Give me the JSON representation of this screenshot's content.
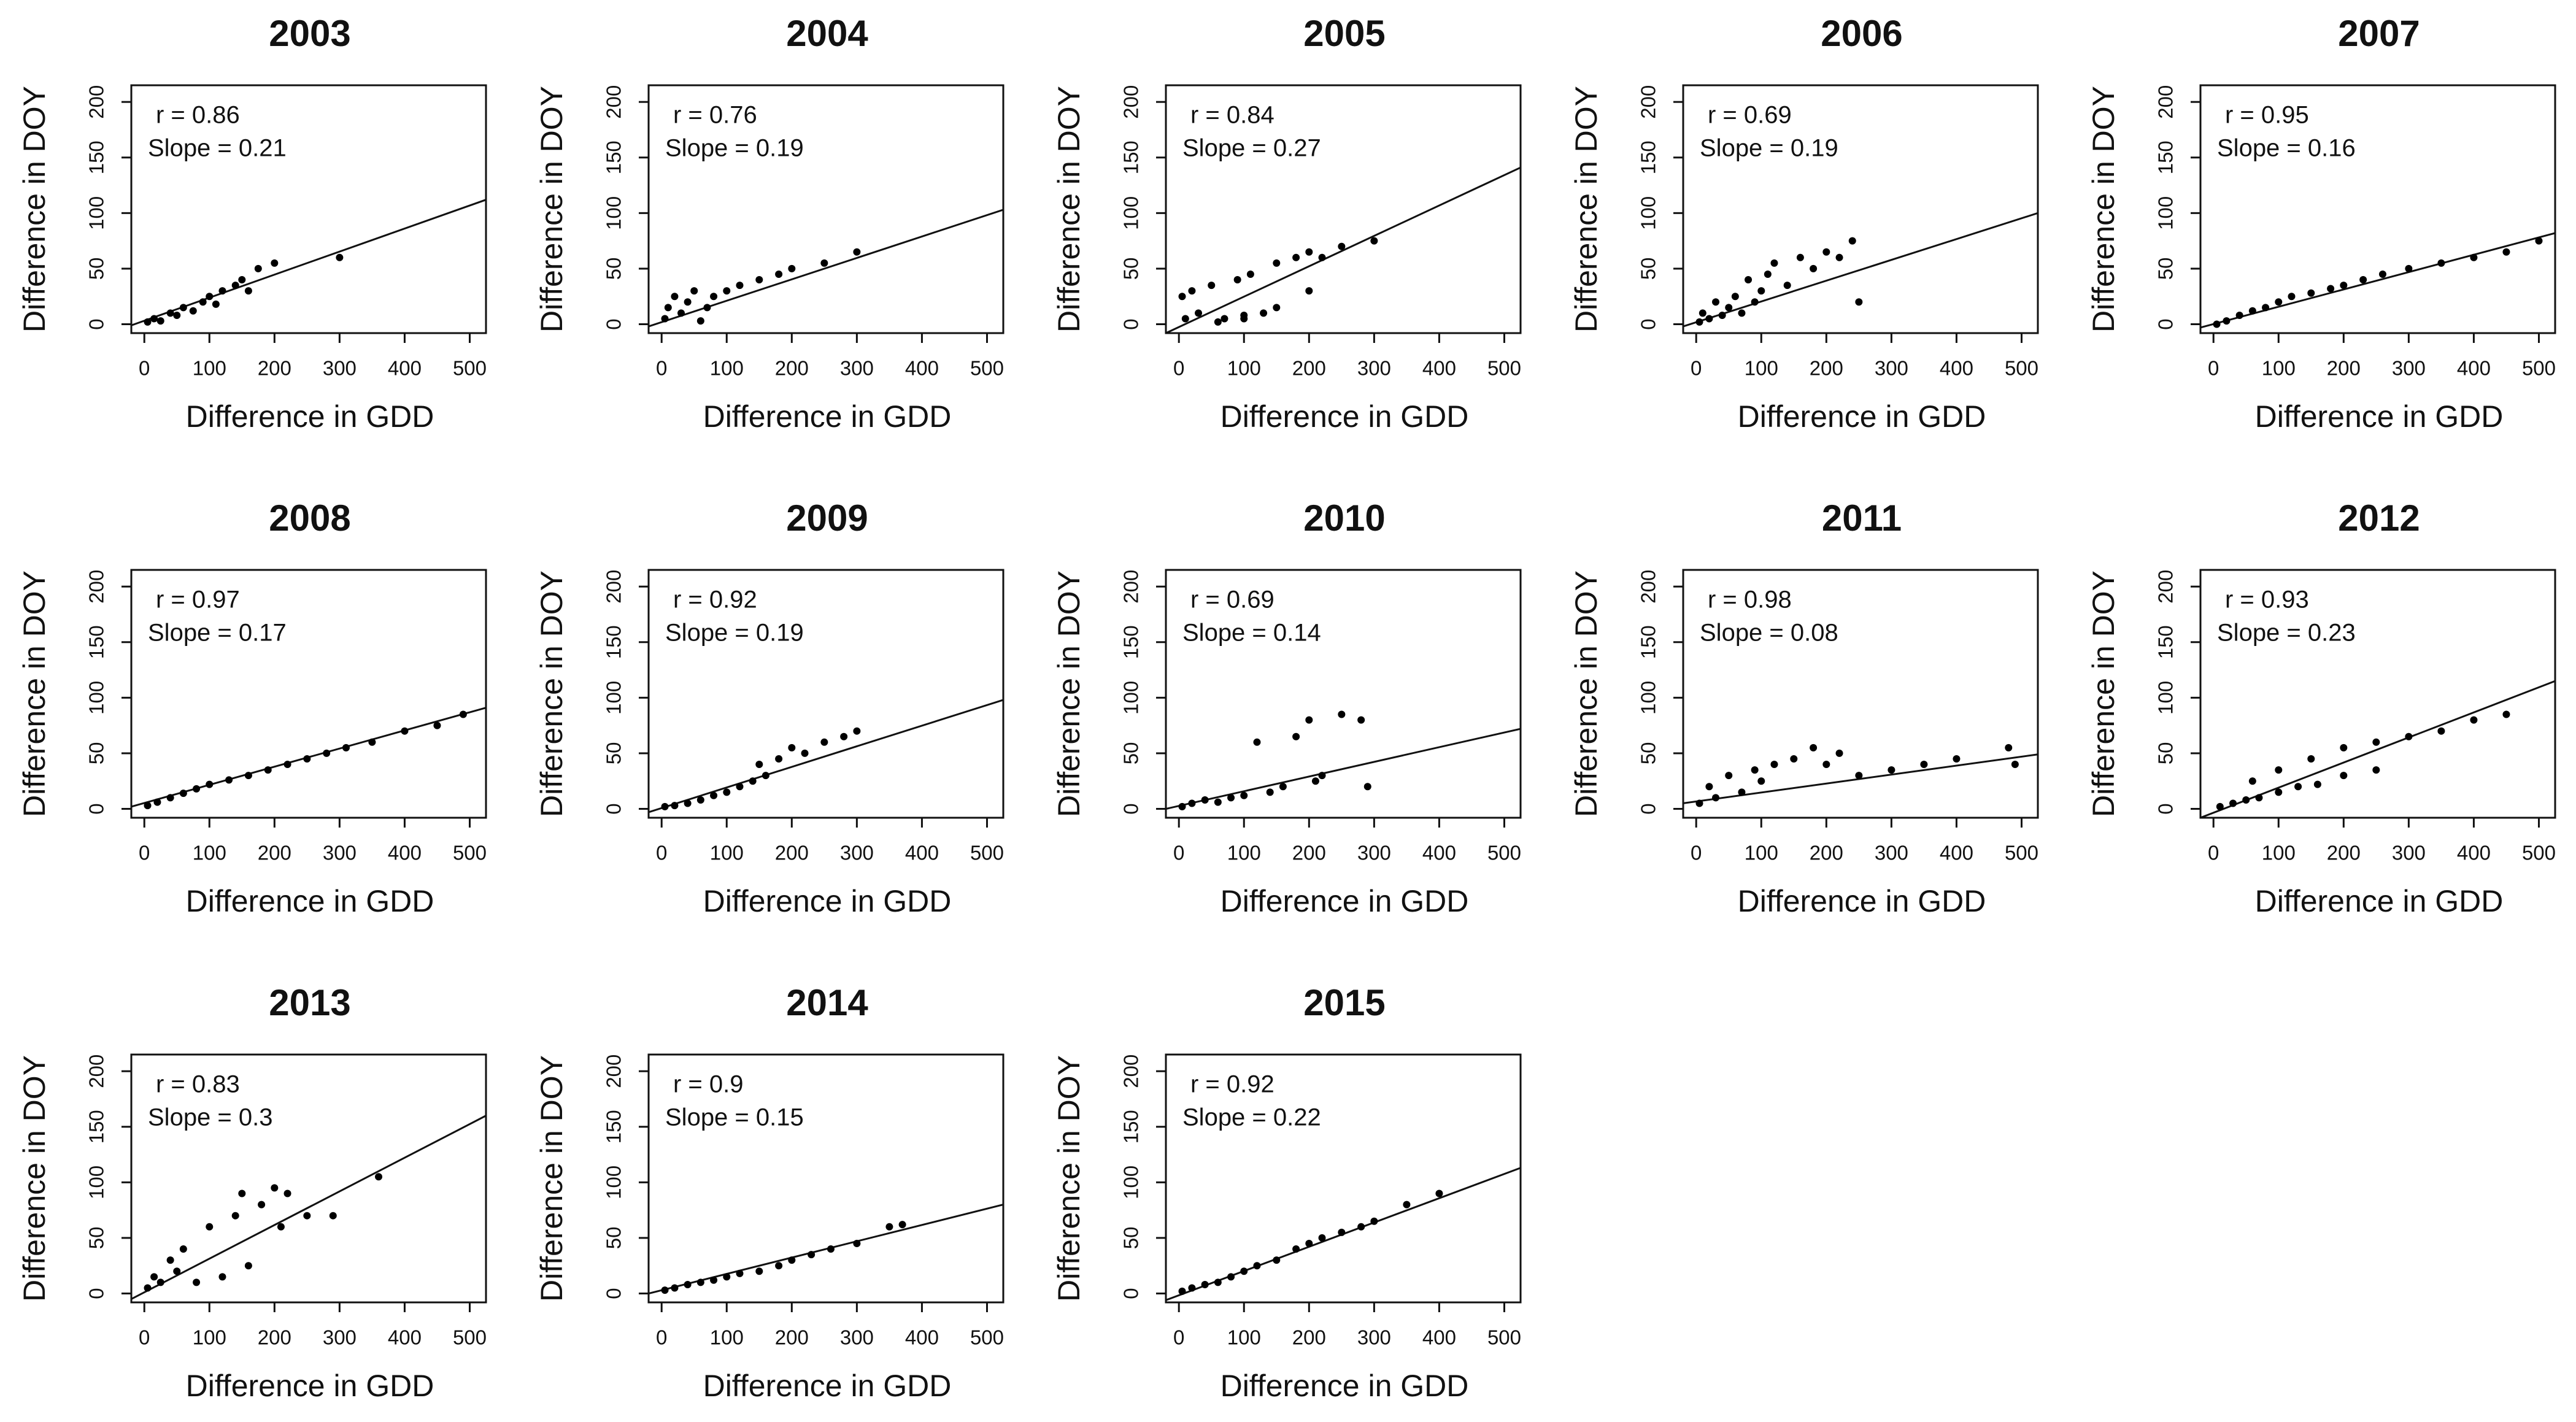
{
  "chart_data": [
    {
      "type": "scatter",
      "title": "2003",
      "xlabel": "Difference in GDD",
      "ylabel": "Difference in DOY",
      "annotations": [
        "r = 0.86",
        "Slope = 0.21"
      ],
      "x": [
        5,
        15,
        25,
        40,
        50,
        60,
        75,
        90,
        100,
        110,
        120,
        140,
        150,
        160,
        175,
        200,
        300
      ],
      "y": [
        2,
        5,
        3,
        10,
        8,
        15,
        12,
        20,
        25,
        18,
        30,
        35,
        40,
        30,
        50,
        55,
        60
      ],
      "fit": {
        "x": [
          -20,
          525
        ],
        "y": [
          -1,
          112
        ]
      },
      "xlim": [
        -20,
        525
      ],
      "ylim": [
        -8,
        215
      ],
      "xticks": [
        0,
        100,
        200,
        300,
        400,
        500
      ],
      "yticks": [
        0,
        50,
        100,
        150,
        200
      ],
      "color": "#000000"
    },
    {
      "type": "scatter",
      "title": "2004",
      "xlabel": "Difference in GDD",
      "ylabel": "Difference in DOY",
      "annotations": [
        "r = 0.76",
        "Slope = 0.19"
      ],
      "x": [
        5,
        10,
        20,
        30,
        40,
        50,
        60,
        70,
        80,
        100,
        120,
        150,
        180,
        200,
        250,
        300
      ],
      "y": [
        5,
        15,
        25,
        10,
        20,
        30,
        3,
        15,
        25,
        30,
        35,
        40,
        45,
        50,
        55,
        65
      ],
      "fit": {
        "x": [
          -20,
          525
        ],
        "y": [
          -2,
          103
        ]
      },
      "xlim": [
        -20,
        525
      ],
      "ylim": [
        -8,
        215
      ],
      "xticks": [
        0,
        100,
        200,
        300,
        400,
        500
      ],
      "yticks": [
        0,
        50,
        100,
        150,
        200
      ],
      "color": "#000000"
    },
    {
      "type": "scatter",
      "title": "2005",
      "xlabel": "Difference in GDD",
      "ylabel": "Difference in DOY",
      "annotations": [
        "r = 0.84",
        "Slope = 0.27"
      ],
      "x": [
        5,
        10,
        20,
        30,
        50,
        70,
        90,
        100,
        110,
        130,
        150,
        180,
        200,
        220,
        250,
        300,
        60,
        100,
        150,
        200
      ],
      "y": [
        25,
        5,
        30,
        10,
        35,
        5,
        40,
        8,
        45,
        10,
        55,
        60,
        65,
        60,
        70,
        75,
        2,
        5,
        15,
        30
      ],
      "fit": {
        "x": [
          -20,
          525
        ],
        "y": [
          -8,
          141
        ]
      },
      "xlim": [
        -20,
        525
      ],
      "ylim": [
        -8,
        215
      ],
      "xticks": [
        0,
        100,
        200,
        300,
        400,
        500
      ],
      "yticks": [
        0,
        50,
        100,
        150,
        200
      ],
      "color": "#000000"
    },
    {
      "type": "scatter",
      "title": "2006",
      "xlabel": "Difference in GDD",
      "ylabel": "Difference in DOY",
      "annotations": [
        "r = 0.69",
        "Slope = 0.19"
      ],
      "x": [
        5,
        10,
        20,
        30,
        40,
        50,
        60,
        70,
        80,
        90,
        100,
        110,
        120,
        140,
        160,
        180,
        200,
        220,
        240,
        250
      ],
      "y": [
        2,
        10,
        5,
        20,
        8,
        15,
        25,
        10,
        40,
        20,
        30,
        45,
        55,
        35,
        60,
        50,
        65,
        60,
        75,
        20
      ],
      "fit": {
        "x": [
          -20,
          525
        ],
        "y": [
          -2,
          100
        ]
      },
      "xlim": [
        -20,
        525
      ],
      "ylim": [
        -8,
        215
      ],
      "xticks": [
        0,
        100,
        200,
        300,
        400,
        500
      ],
      "yticks": [
        0,
        50,
        100,
        150,
        200
      ],
      "color": "#000000"
    },
    {
      "type": "scatter",
      "title": "2007",
      "xlabel": "Difference in GDD",
      "ylabel": "Difference in DOY",
      "annotations": [
        "r = 0.95",
        "Slope = 0.16"
      ],
      "x": [
        5,
        20,
        40,
        60,
        80,
        100,
        120,
        150,
        180,
        200,
        230,
        260,
        300,
        350,
        400,
        450,
        500
      ],
      "y": [
        0,
        3,
        8,
        12,
        15,
        20,
        25,
        28,
        32,
        35,
        40,
        45,
        50,
        55,
        60,
        65,
        75
      ],
      "fit": {
        "x": [
          -20,
          525
        ],
        "y": [
          -3,
          82
        ]
      },
      "xlim": [
        -20,
        525
      ],
      "ylim": [
        -8,
        215
      ],
      "xticks": [
        0,
        100,
        200,
        300,
        400,
        500
      ],
      "yticks": [
        0,
        50,
        100,
        150,
        200
      ],
      "color": "#000000"
    },
    {
      "type": "scatter",
      "title": "2008",
      "xlabel": "Difference in GDD",
      "ylabel": "Difference in DOY",
      "annotations": [
        "r = 0.97",
        "Slope = 0.17"
      ],
      "x": [
        5,
        20,
        40,
        60,
        80,
        100,
        130,
        160,
        190,
        220,
        250,
        280,
        310,
        350,
        400,
        450,
        490
      ],
      "y": [
        3,
        6,
        10,
        14,
        18,
        22,
        26,
        30,
        35,
        40,
        45,
        50,
        55,
        60,
        70,
        75,
        85
      ],
      "fit": {
        "x": [
          -20,
          525
        ],
        "y": [
          2,
          91
        ]
      },
      "xlim": [
        -20,
        525
      ],
      "ylim": [
        -8,
        215
      ],
      "xticks": [
        0,
        100,
        200,
        300,
        400,
        500
      ],
      "yticks": [
        0,
        50,
        100,
        150,
        200
      ],
      "color": "#000000"
    },
    {
      "type": "scatter",
      "title": "2009",
      "xlabel": "Difference in GDD",
      "ylabel": "Difference in DOY",
      "annotations": [
        "r = 0.92",
        "Slope = 0.19"
      ],
      "x": [
        5,
        20,
        40,
        60,
        80,
        100,
        120,
        140,
        150,
        160,
        180,
        200,
        220,
        250,
        280,
        300
      ],
      "y": [
        2,
        3,
        5,
        8,
        12,
        15,
        20,
        25,
        40,
        30,
        45,
        55,
        50,
        60,
        65,
        70
      ],
      "fit": {
        "x": [
          -20,
          525
        ],
        "y": [
          -3,
          98
        ]
      },
      "xlim": [
        -20,
        525
      ],
      "ylim": [
        -8,
        215
      ],
      "xticks": [
        0,
        100,
        200,
        300,
        400,
        500
      ],
      "yticks": [
        0,
        50,
        100,
        150,
        200
      ],
      "color": "#000000"
    },
    {
      "type": "scatter",
      "title": "2010",
      "xlabel": "Difference in GDD",
      "ylabel": "Difference in DOY",
      "annotations": [
        "r = 0.69",
        "Slope = 0.14"
      ],
      "x": [
        5,
        20,
        40,
        60,
        80,
        100,
        120,
        140,
        160,
        180,
        200,
        210,
        220,
        250,
        280,
        290
      ],
      "y": [
        2,
        5,
        8,
        6,
        10,
        12,
        60,
        15,
        20,
        65,
        80,
        25,
        30,
        85,
        80,
        20
      ],
      "fit": {
        "x": [
          -20,
          525
        ],
        "y": [
          0,
          72
        ]
      },
      "xlim": [
        -20,
        525
      ],
      "ylim": [
        -8,
        215
      ],
      "xticks": [
        0,
        100,
        200,
        300,
        400,
        500
      ],
      "yticks": [
        0,
        50,
        100,
        150,
        200
      ],
      "color": "#000000"
    },
    {
      "type": "scatter",
      "title": "2011",
      "xlabel": "Difference in GDD",
      "ylabel": "Difference in DOY",
      "annotations": [
        "r = 0.98",
        "Slope = 0.08"
      ],
      "x": [
        5,
        20,
        30,
        50,
        70,
        90,
        100,
        120,
        150,
        180,
        200,
        220,
        250,
        300,
        350,
        400,
        480,
        490
      ],
      "y": [
        5,
        20,
        10,
        30,
        15,
        35,
        25,
        40,
        45,
        55,
        40,
        50,
        30,
        35,
        40,
        45,
        55,
        40
      ],
      "fit": {
        "x": [
          -20,
          525
        ],
        "y": [
          5,
          49
        ]
      },
      "xlim": [
        -20,
        525
      ],
      "ylim": [
        -8,
        215
      ],
      "xticks": [
        0,
        100,
        200,
        300,
        400,
        500
      ],
      "yticks": [
        0,
        50,
        100,
        150,
        200
      ],
      "color": "#000000"
    },
    {
      "type": "scatter",
      "title": "2012",
      "xlabel": "Difference in GDD",
      "ylabel": "Difference in DOY",
      "annotations": [
        "r = 0.93",
        "Slope = 0.23"
      ],
      "x": [
        10,
        30,
        50,
        70,
        100,
        130,
        160,
        200,
        250,
        60,
        100,
        150,
        200,
        250,
        300,
        350,
        400,
        450
      ],
      "y": [
        2,
        5,
        8,
        10,
        15,
        20,
        22,
        30,
        35,
        25,
        35,
        45,
        55,
        60,
        65,
        70,
        80,
        85
      ],
      "fit": {
        "x": [
          -20,
          525
        ],
        "y": [
          -8,
          115
        ]
      },
      "xlim": [
        -20,
        525
      ],
      "ylim": [
        -8,
        215
      ],
      "xticks": [
        0,
        100,
        200,
        300,
        400,
        500
      ],
      "yticks": [
        0,
        50,
        100,
        150,
        200
      ],
      "color": "#000000"
    },
    {
      "type": "scatter",
      "title": "2013",
      "xlabel": "Difference in GDD",
      "ylabel": "Difference in DOY",
      "annotations": [
        "r = 0.83",
        "Slope = 0.3"
      ],
      "x": [
        5,
        15,
        25,
        40,
        50,
        60,
        80,
        100,
        120,
        140,
        150,
        160,
        180,
        200,
        210,
        220,
        250,
        290,
        360
      ],
      "y": [
        5,
        15,
        10,
        30,
        20,
        40,
        10,
        60,
        15,
        70,
        90,
        25,
        80,
        95,
        60,
        90,
        70,
        70,
        105
      ],
      "fit": {
        "x": [
          -20,
          525
        ],
        "y": [
          -5,
          160
        ]
      },
      "xlim": [
        -20,
        525
      ],
      "ylim": [
        -8,
        215
      ],
      "xticks": [
        0,
        100,
        200,
        300,
        400,
        500
      ],
      "yticks": [
        0,
        50,
        100,
        150,
        200
      ],
      "color": "#000000"
    },
    {
      "type": "scatter",
      "title": "2014",
      "xlabel": "Difference in GDD",
      "ylabel": "Difference in DOY",
      "annotations": [
        "r = 0.9",
        "Slope = 0.15"
      ],
      "x": [
        5,
        20,
        40,
        60,
        80,
        100,
        120,
        150,
        180,
        200,
        230,
        260,
        300,
        350,
        370
      ],
      "y": [
        3,
        5,
        8,
        10,
        12,
        15,
        18,
        20,
        25,
        30,
        35,
        40,
        45,
        60,
        62
      ],
      "fit": {
        "x": [
          -20,
          525
        ],
        "y": [
          0,
          80
        ]
      },
      "xlim": [
        -20,
        525
      ],
      "ylim": [
        -8,
        215
      ],
      "xticks": [
        0,
        100,
        200,
        300,
        400,
        500
      ],
      "yticks": [
        0,
        50,
        100,
        150,
        200
      ],
      "color": "#000000"
    },
    {
      "type": "scatter",
      "title": "2015",
      "xlabel": "Difference in GDD",
      "ylabel": "Difference in DOY",
      "annotations": [
        "r = 0.92",
        "Slope = 0.22"
      ],
      "x": [
        5,
        20,
        40,
        60,
        80,
        100,
        120,
        150,
        180,
        200,
        220,
        250,
        280,
        300,
        350,
        400
      ],
      "y": [
        2,
        5,
        8,
        10,
        15,
        20,
        25,
        30,
        40,
        45,
        50,
        55,
        60,
        65,
        80,
        90
      ],
      "fit": {
        "x": [
          -20,
          525
        ],
        "y": [
          -6,
          113
        ]
      },
      "xlim": [
        -20,
        525
      ],
      "ylim": [
        -8,
        215
      ],
      "xticks": [
        0,
        100,
        200,
        300,
        400,
        500
      ],
      "yticks": [
        0,
        50,
        100,
        150,
        200
      ],
      "color": "#000000"
    }
  ]
}
